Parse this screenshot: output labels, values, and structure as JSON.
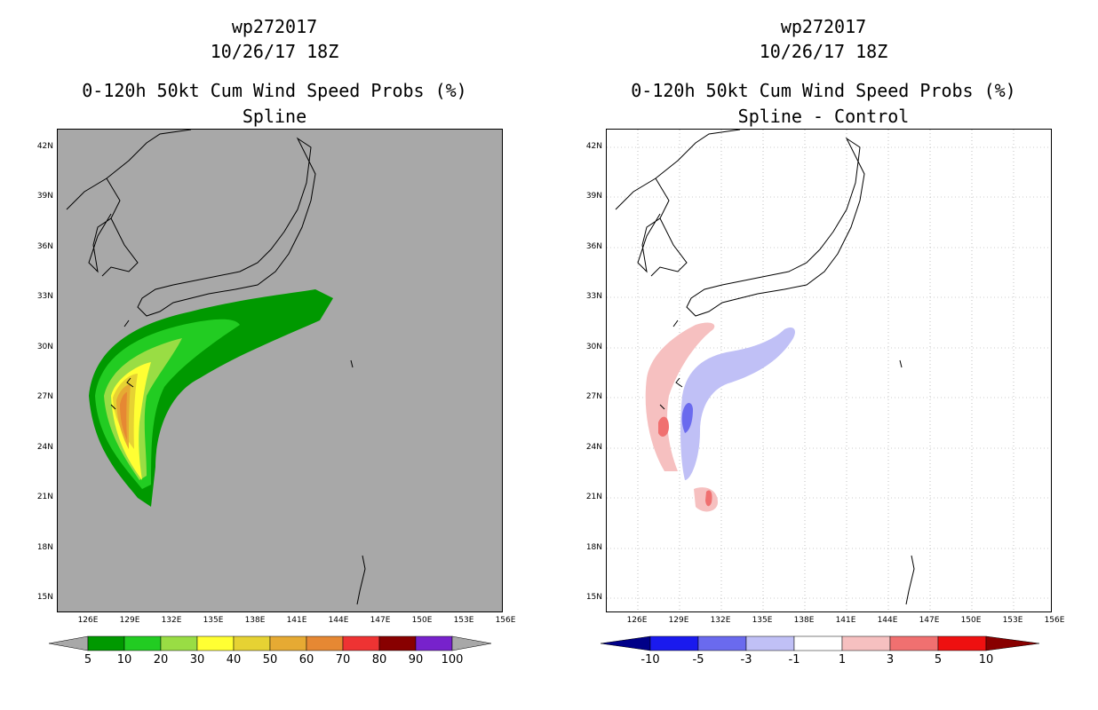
{
  "left": {
    "title1": "wp272017",
    "title2": "10/26/17 18Z",
    "title3": "0-120h 50kt Cum Wind Speed Probs (%)",
    "title4": "Spline",
    "legend_labels": [
      "5",
      "10",
      "20",
      "30",
      "40",
      "50",
      "60",
      "70",
      "80",
      "90",
      "100"
    ],
    "legend_colors": [
      "#009900",
      "#22cc22",
      "#99dd44",
      "#ffff33",
      "#e6d233",
      "#e6aa33",
      "#e68833",
      "#ee3333",
      "#880000",
      "#7722cc"
    ]
  },
  "right": {
    "title1": "wp272017",
    "title2": "10/26/17 18Z",
    "title3": "0-120h 50kt Cum Wind Speed Probs (%)",
    "title4": "Spline - Control",
    "legend_labels": [
      "-10",
      "-5",
      "-3",
      "-1",
      "1",
      "3",
      "5",
      "10"
    ],
    "legend_colors": [
      "#1a1aee",
      "#6a6aee",
      "#c0c0f6",
      "#ffffff",
      "#f6c0c0",
      "#f07070",
      "#ee1010"
    ]
  },
  "lat_labels": [
    "42N",
    "39N",
    "36N",
    "33N",
    "30N",
    "27N",
    "24N",
    "21N",
    "18N",
    "15N"
  ],
  "lon_labels": [
    "126E",
    "129E",
    "132E",
    "135E",
    "138E",
    "141E",
    "144E",
    "147E",
    "150E",
    "153E",
    "156E"
  ]
}
